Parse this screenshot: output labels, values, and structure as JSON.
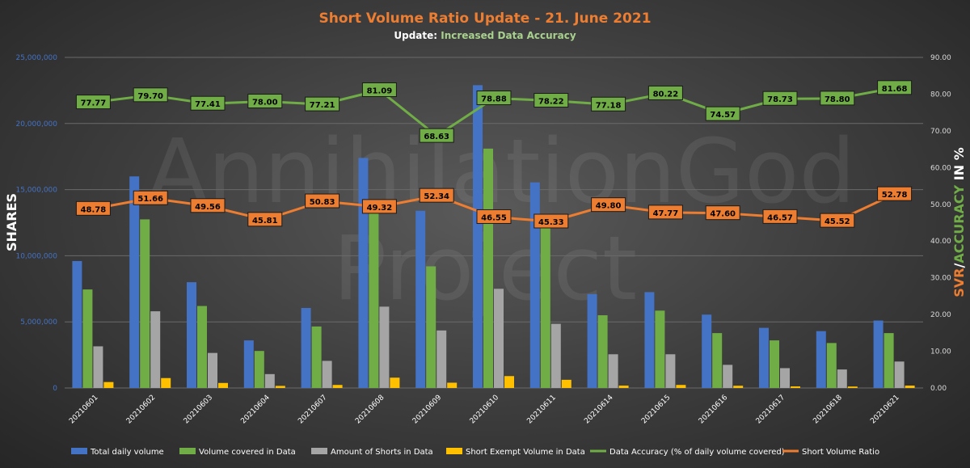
{
  "chart_data": {
    "type": "bar",
    "title": "Short Volume Ratio Update - 21. June 2021",
    "subtitle_prefix": "Update: ",
    "subtitle_highlight": "Increased Data Accuracy",
    "watermark_line1": "AnnihilationGod",
    "watermark_line2": "Project",
    "ylabel_left": "SHARES",
    "ylabel_right_part1": "SVR",
    "ylabel_right_part2": "/",
    "ylabel_right_part3": "ACCURACY",
    "ylabel_right_part4": " IN %",
    "ylim_left": [
      0,
      25000000
    ],
    "ylim_right": [
      0,
      90
    ],
    "yticks_left": [
      "0",
      "5,000,000",
      "10,000,000",
      "15,000,000",
      "20,000,000",
      "25,000,000"
    ],
    "yticks_right": [
      "0.00",
      "10.00",
      "20.00",
      "30.00",
      "40.00",
      "50.00",
      "60.00",
      "70.00",
      "80.00",
      "90.00"
    ],
    "categories": [
      "20210601",
      "20210602",
      "20210603",
      "20210604",
      "20210607",
      "20210608",
      "20210609",
      "20210610",
      "20210611",
      "20210614",
      "20210615",
      "20210616",
      "20210617",
      "20210618",
      "20210621"
    ],
    "bar_series": [
      {
        "name": "Total daily volume",
        "color": "#4472c4",
        "values": [
          9600000,
          16000000,
          8000000,
          3600000,
          6050000,
          17400000,
          13400000,
          22900000,
          15550000,
          7100000,
          7250000,
          5550000,
          4550000,
          4300000,
          5100000
        ]
      },
      {
        "name": "Volume covered in Data",
        "color": "#70ad47",
        "values": [
          7450000,
          12750000,
          6200000,
          2800000,
          4650000,
          14100000,
          9200000,
          18100000,
          12200000,
          5500000,
          5850000,
          4150000,
          3600000,
          3400000,
          4150000
        ]
      },
      {
        "name": "Amount of Shorts in Data",
        "color": "#a5a5a5",
        "values": [
          3150000,
          5800000,
          2650000,
          1050000,
          2050000,
          6150000,
          4350000,
          7500000,
          4850000,
          2550000,
          2550000,
          1750000,
          1500000,
          1400000,
          2000000
        ]
      },
      {
        "name": "Short Exempt Volume in Data",
        "color": "#ffc000",
        "values": [
          450000,
          750000,
          380000,
          160000,
          230000,
          780000,
          400000,
          900000,
          620000,
          180000,
          230000,
          170000,
          120000,
          110000,
          180000
        ]
      }
    ],
    "line_series": [
      {
        "name": "Data Accuracy (% of daily volume covered)",
        "color": "#70ad47",
        "values": [
          77.77,
          79.7,
          77.41,
          78.0,
          77.21,
          81.09,
          68.63,
          78.88,
          78.22,
          77.18,
          80.22,
          74.57,
          78.73,
          78.8,
          81.68
        ],
        "labels": [
          "77.77",
          "79.70",
          "77.41",
          "78.00",
          "77.21",
          "81.09",
          "68.63",
          "78.88",
          "78.22",
          "77.18",
          "80.22",
          "74.57",
          "78.73",
          "78.80",
          "81.68"
        ]
      },
      {
        "name": "Short Volume Ratio",
        "color": "#ed7d31",
        "values": [
          48.78,
          51.66,
          49.56,
          45.81,
          50.83,
          49.32,
          52.34,
          46.55,
          45.33,
          49.8,
          47.77,
          47.6,
          46.57,
          45.52,
          52.78
        ],
        "labels": [
          "48.78",
          "51.66",
          "49.56",
          "45.81",
          "50.83",
          "49.32",
          "52.34",
          "46.55",
          "45.33",
          "49.80",
          "47.77",
          "47.60",
          "46.57",
          "45.52",
          "52.78"
        ]
      }
    ],
    "legend_position": "bottom",
    "colors": {
      "title": "#ed7d31",
      "subtitle": "#ffffff",
      "subtitle_highlight": "#a9d18e",
      "left_tick": "#4472c4",
      "right_tick": "#d9d9d9",
      "axis_text": "#ffffff",
      "gridline": "#6a6a6a"
    }
  }
}
